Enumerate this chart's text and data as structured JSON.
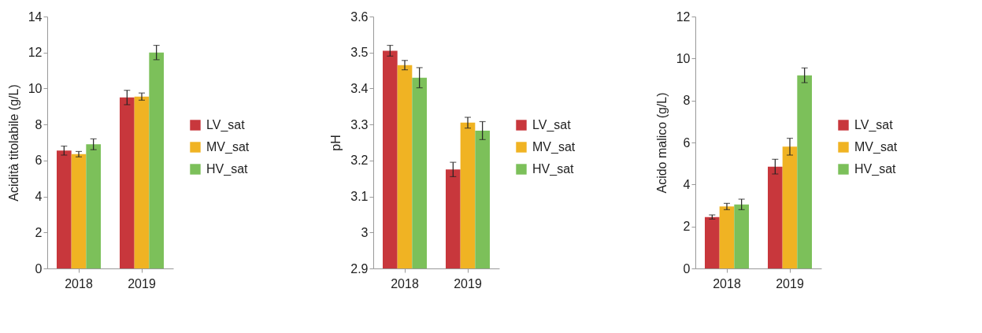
{
  "chart_data": [
    {
      "type": "bar",
      "ylabel": "Acidità titolabile  (g/L)",
      "categories": [
        "2018",
        "2019"
      ],
      "ylim": [
        0,
        14
      ],
      "yticks": [
        0,
        2,
        4,
        6,
        8,
        10,
        12,
        14
      ],
      "grid": false,
      "legend": "right",
      "series": [
        {
          "name": "LV_sat",
          "color": "#c8373c",
          "values": [
            6.55,
            9.5
          ],
          "errors": [
            0.25,
            0.4
          ]
        },
        {
          "name": "MV_sat",
          "color": "#f0b323",
          "values": [
            6.35,
            9.55
          ],
          "errors": [
            0.15,
            0.2
          ]
        },
        {
          "name": "HV_sat",
          "color": "#7cc05a",
          "values": [
            6.9,
            12.0
          ],
          "errors": [
            0.3,
            0.4
          ]
        }
      ]
    },
    {
      "type": "bar",
      "ylabel": "pH",
      "categories": [
        "2018",
        "2019"
      ],
      "ylim": [
        2.9,
        3.6
      ],
      "yticks": [
        2.9,
        3,
        3.1,
        3.2,
        3.3,
        3.4,
        3.5,
        3.6
      ],
      "grid": false,
      "legend": "right",
      "series": [
        {
          "name": "LV_sat",
          "color": "#c8373c",
          "values": [
            3.505,
            3.175
          ],
          "errors": [
            0.015,
            0.02
          ]
        },
        {
          "name": "MV_sat",
          "color": "#f0b323",
          "values": [
            3.465,
            3.305
          ],
          "errors": [
            0.013,
            0.015
          ]
        },
        {
          "name": "HV_sat",
          "color": "#7cc05a",
          "values": [
            3.43,
            3.283
          ],
          "errors": [
            0.028,
            0.025
          ]
        }
      ]
    },
    {
      "type": "bar",
      "ylabel": "Acido malico (g/L)",
      "categories": [
        "2018",
        "2019"
      ],
      "ylim": [
        0,
        12
      ],
      "yticks": [
        0,
        2,
        4,
        6,
        8,
        10,
        12
      ],
      "grid": false,
      "legend": "right",
      "series": [
        {
          "name": "LV_sat",
          "color": "#c8373c",
          "values": [
            2.45,
            4.85
          ],
          "errors": [
            0.1,
            0.35
          ]
        },
        {
          "name": "MV_sat",
          "color": "#f0b323",
          "values": [
            2.95,
            5.8
          ],
          "errors": [
            0.15,
            0.4
          ]
        },
        {
          "name": "HV_sat",
          "color": "#7cc05a",
          "values": [
            3.05,
            9.2
          ],
          "errors": [
            0.25,
            0.35
          ]
        }
      ]
    }
  ]
}
